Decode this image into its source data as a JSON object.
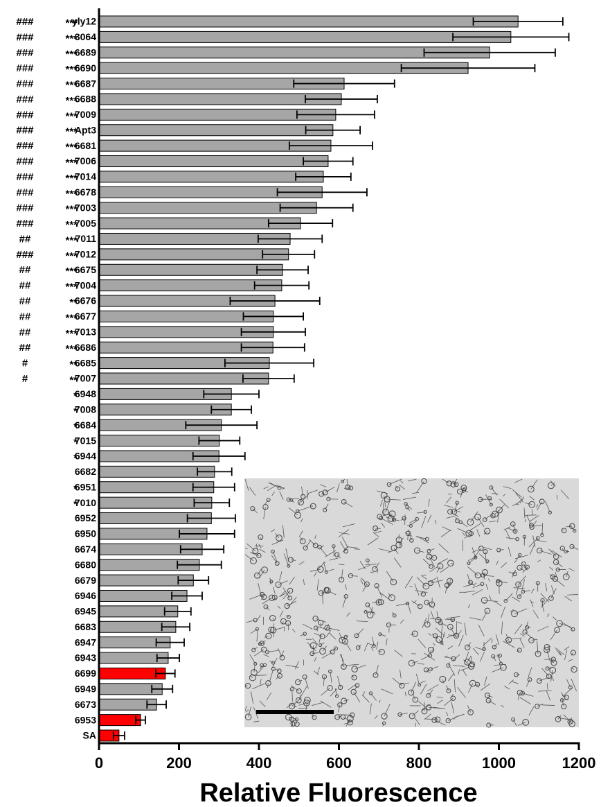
{
  "chart_data": {
    "type": "bar",
    "orientation": "horizontal",
    "categories": [
      "yly12",
      "3064",
      "6689",
      "6690",
      "6687",
      "6688",
      "7009",
      "Apt3",
      "6681",
      "7006",
      "7014",
      "6678",
      "7003",
      "7005",
      "7011",
      "7012",
      "6675",
      "7004",
      "6676",
      "6677",
      "7013",
      "6686",
      "6685",
      "7007",
      "6948",
      "7008",
      "6684",
      "7015",
      "6944",
      "6682",
      "6951",
      "7010",
      "6952",
      "6950",
      "6674",
      "6680",
      "6679",
      "6946",
      "6945",
      "6683",
      "6947",
      "6943",
      "6699",
      "6949",
      "6673",
      "6953",
      "SA"
    ],
    "values": [
      1048,
      1030,
      977,
      923,
      613,
      606,
      592,
      585,
      580,
      573,
      561,
      558,
      544,
      504,
      478,
      474,
      459,
      457,
      440,
      436,
      436,
      435,
      426,
      424,
      331,
      331,
      306,
      301,
      300,
      289,
      287,
      282,
      281,
      270,
      258,
      251,
      236,
      220,
      197,
      192,
      178,
      173,
      166,
      158,
      144,
      104,
      50
    ],
    "errors": [
      112,
      145,
      164,
      167,
      126,
      90,
      97,
      68,
      104,
      62,
      69,
      112,
      91,
      80,
      80,
      65,
      64,
      68,
      112,
      75,
      80,
      79,
      111,
      64,
      69,
      50,
      89,
      51,
      65,
      43,
      52,
      44,
      60,
      69,
      54,
      55,
      38,
      38,
      33,
      35,
      35,
      28,
      24,
      26,
      24,
      12,
      14
    ],
    "colors": [
      "#a6a6a6",
      "#a6a6a6",
      "#a6a6a6",
      "#a6a6a6",
      "#a6a6a6",
      "#a6a6a6",
      "#a6a6a6",
      "#a6a6a6",
      "#a6a6a6",
      "#a6a6a6",
      "#a6a6a6",
      "#a6a6a6",
      "#a6a6a6",
      "#a6a6a6",
      "#a6a6a6",
      "#a6a6a6",
      "#a6a6a6",
      "#a6a6a6",
      "#a6a6a6",
      "#a6a6a6",
      "#a6a6a6",
      "#a6a6a6",
      "#a6a6a6",
      "#a6a6a6",
      "#a6a6a6",
      "#a6a6a6",
      "#a6a6a6",
      "#a6a6a6",
      "#a6a6a6",
      "#a6a6a6",
      "#a6a6a6",
      "#a6a6a6",
      "#a6a6a6",
      "#a6a6a6",
      "#a6a6a6",
      "#a6a6a6",
      "#a6a6a6",
      "#a6a6a6",
      "#a6a6a6",
      "#a6a6a6",
      "#a6a6a6",
      "#a6a6a6",
      "#ff0000",
      "#a6a6a6",
      "#a6a6a6",
      "#ff0000",
      "#ff0000"
    ],
    "hash_marks": [
      "###",
      "###",
      "###",
      "###",
      "###",
      "###",
      "###",
      "###",
      "###",
      "###",
      "###",
      "###",
      "###",
      "###",
      "##",
      "###",
      "##",
      "##",
      "##",
      "##",
      "##",
      "##",
      "#",
      "#",
      null,
      null,
      null,
      null,
      null,
      null,
      null,
      null,
      null,
      null,
      null,
      null,
      null,
      null,
      null,
      null,
      null,
      null,
      null,
      null,
      null,
      null,
      null
    ],
    "star_marks": [
      "***",
      "***",
      "***",
      "***",
      "***",
      "***",
      "***",
      "***",
      "***",
      "***",
      "***",
      "***",
      "***",
      "***",
      "***",
      "***",
      "***",
      "***",
      "**",
      "***",
      "***",
      "***",
      "**",
      "**",
      "*",
      "*",
      "*",
      "*",
      "*",
      null,
      "*",
      "*",
      null,
      null,
      null,
      null,
      null,
      null,
      null,
      null,
      null,
      null,
      null,
      null,
      null,
      null,
      null
    ],
    "xlabel": "Relative Fluorescence",
    "xlim": [
      0,
      1200
    ],
    "xticks": [
      0,
      200,
      400,
      600,
      800,
      1000,
      1200
    ]
  }
}
